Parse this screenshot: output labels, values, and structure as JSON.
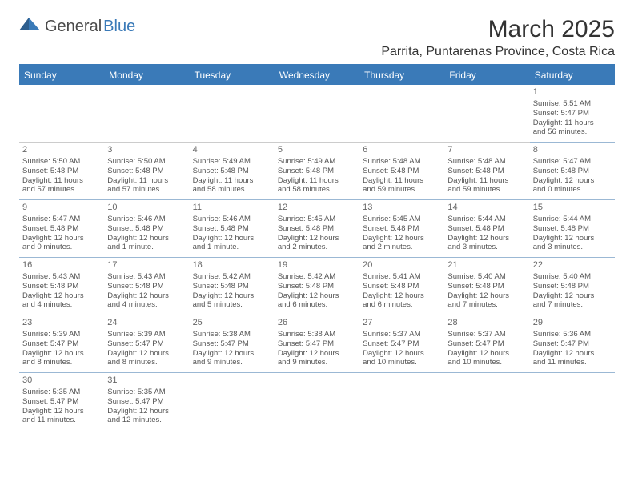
{
  "logo": {
    "text1": "General",
    "text2": "Blue"
  },
  "title": "March 2025",
  "location": "Parrita, Puntarenas Province, Costa Rica",
  "weekdays": [
    "Sunday",
    "Monday",
    "Tuesday",
    "Wednesday",
    "Thursday",
    "Friday",
    "Saturday"
  ],
  "colors": {
    "header_bg": "#3a7ab8",
    "header_text": "#ffffff",
    "cell_border": "#9bb8d4",
    "text": "#555555",
    "daynum": "#666666"
  },
  "leading_blanks": 6,
  "days": [
    {
      "num": "1",
      "sunrise": "Sunrise: 5:51 AM",
      "sunset": "Sunset: 5:47 PM",
      "daylight1": "Daylight: 11 hours",
      "daylight2": "and 56 minutes."
    },
    {
      "num": "2",
      "sunrise": "Sunrise: 5:50 AM",
      "sunset": "Sunset: 5:48 PM",
      "daylight1": "Daylight: 11 hours",
      "daylight2": "and 57 minutes."
    },
    {
      "num": "3",
      "sunrise": "Sunrise: 5:50 AM",
      "sunset": "Sunset: 5:48 PM",
      "daylight1": "Daylight: 11 hours",
      "daylight2": "and 57 minutes."
    },
    {
      "num": "4",
      "sunrise": "Sunrise: 5:49 AM",
      "sunset": "Sunset: 5:48 PM",
      "daylight1": "Daylight: 11 hours",
      "daylight2": "and 58 minutes."
    },
    {
      "num": "5",
      "sunrise": "Sunrise: 5:49 AM",
      "sunset": "Sunset: 5:48 PM",
      "daylight1": "Daylight: 11 hours",
      "daylight2": "and 58 minutes."
    },
    {
      "num": "6",
      "sunrise": "Sunrise: 5:48 AM",
      "sunset": "Sunset: 5:48 PM",
      "daylight1": "Daylight: 11 hours",
      "daylight2": "and 59 minutes."
    },
    {
      "num": "7",
      "sunrise": "Sunrise: 5:48 AM",
      "sunset": "Sunset: 5:48 PM",
      "daylight1": "Daylight: 11 hours",
      "daylight2": "and 59 minutes."
    },
    {
      "num": "8",
      "sunrise": "Sunrise: 5:47 AM",
      "sunset": "Sunset: 5:48 PM",
      "daylight1": "Daylight: 12 hours",
      "daylight2": "and 0 minutes."
    },
    {
      "num": "9",
      "sunrise": "Sunrise: 5:47 AM",
      "sunset": "Sunset: 5:48 PM",
      "daylight1": "Daylight: 12 hours",
      "daylight2": "and 0 minutes."
    },
    {
      "num": "10",
      "sunrise": "Sunrise: 5:46 AM",
      "sunset": "Sunset: 5:48 PM",
      "daylight1": "Daylight: 12 hours",
      "daylight2": "and 1 minute."
    },
    {
      "num": "11",
      "sunrise": "Sunrise: 5:46 AM",
      "sunset": "Sunset: 5:48 PM",
      "daylight1": "Daylight: 12 hours",
      "daylight2": "and 1 minute."
    },
    {
      "num": "12",
      "sunrise": "Sunrise: 5:45 AM",
      "sunset": "Sunset: 5:48 PM",
      "daylight1": "Daylight: 12 hours",
      "daylight2": "and 2 minutes."
    },
    {
      "num": "13",
      "sunrise": "Sunrise: 5:45 AM",
      "sunset": "Sunset: 5:48 PM",
      "daylight1": "Daylight: 12 hours",
      "daylight2": "and 2 minutes."
    },
    {
      "num": "14",
      "sunrise": "Sunrise: 5:44 AM",
      "sunset": "Sunset: 5:48 PM",
      "daylight1": "Daylight: 12 hours",
      "daylight2": "and 3 minutes."
    },
    {
      "num": "15",
      "sunrise": "Sunrise: 5:44 AM",
      "sunset": "Sunset: 5:48 PM",
      "daylight1": "Daylight: 12 hours",
      "daylight2": "and 3 minutes."
    },
    {
      "num": "16",
      "sunrise": "Sunrise: 5:43 AM",
      "sunset": "Sunset: 5:48 PM",
      "daylight1": "Daylight: 12 hours",
      "daylight2": "and 4 minutes."
    },
    {
      "num": "17",
      "sunrise": "Sunrise: 5:43 AM",
      "sunset": "Sunset: 5:48 PM",
      "daylight1": "Daylight: 12 hours",
      "daylight2": "and 4 minutes."
    },
    {
      "num": "18",
      "sunrise": "Sunrise: 5:42 AM",
      "sunset": "Sunset: 5:48 PM",
      "daylight1": "Daylight: 12 hours",
      "daylight2": "and 5 minutes."
    },
    {
      "num": "19",
      "sunrise": "Sunrise: 5:42 AM",
      "sunset": "Sunset: 5:48 PM",
      "daylight1": "Daylight: 12 hours",
      "daylight2": "and 6 minutes."
    },
    {
      "num": "20",
      "sunrise": "Sunrise: 5:41 AM",
      "sunset": "Sunset: 5:48 PM",
      "daylight1": "Daylight: 12 hours",
      "daylight2": "and 6 minutes."
    },
    {
      "num": "21",
      "sunrise": "Sunrise: 5:40 AM",
      "sunset": "Sunset: 5:48 PM",
      "daylight1": "Daylight: 12 hours",
      "daylight2": "and 7 minutes."
    },
    {
      "num": "22",
      "sunrise": "Sunrise: 5:40 AM",
      "sunset": "Sunset: 5:48 PM",
      "daylight1": "Daylight: 12 hours",
      "daylight2": "and 7 minutes."
    },
    {
      "num": "23",
      "sunrise": "Sunrise: 5:39 AM",
      "sunset": "Sunset: 5:47 PM",
      "daylight1": "Daylight: 12 hours",
      "daylight2": "and 8 minutes."
    },
    {
      "num": "24",
      "sunrise": "Sunrise: 5:39 AM",
      "sunset": "Sunset: 5:47 PM",
      "daylight1": "Daylight: 12 hours",
      "daylight2": "and 8 minutes."
    },
    {
      "num": "25",
      "sunrise": "Sunrise: 5:38 AM",
      "sunset": "Sunset: 5:47 PM",
      "daylight1": "Daylight: 12 hours",
      "daylight2": "and 9 minutes."
    },
    {
      "num": "26",
      "sunrise": "Sunrise: 5:38 AM",
      "sunset": "Sunset: 5:47 PM",
      "daylight1": "Daylight: 12 hours",
      "daylight2": "and 9 minutes."
    },
    {
      "num": "27",
      "sunrise": "Sunrise: 5:37 AM",
      "sunset": "Sunset: 5:47 PM",
      "daylight1": "Daylight: 12 hours",
      "daylight2": "and 10 minutes."
    },
    {
      "num": "28",
      "sunrise": "Sunrise: 5:37 AM",
      "sunset": "Sunset: 5:47 PM",
      "daylight1": "Daylight: 12 hours",
      "daylight2": "and 10 minutes."
    },
    {
      "num": "29",
      "sunrise": "Sunrise: 5:36 AM",
      "sunset": "Sunset: 5:47 PM",
      "daylight1": "Daylight: 12 hours",
      "daylight2": "and 11 minutes."
    },
    {
      "num": "30",
      "sunrise": "Sunrise: 5:35 AM",
      "sunset": "Sunset: 5:47 PM",
      "daylight1": "Daylight: 12 hours",
      "daylight2": "and 11 minutes."
    },
    {
      "num": "31",
      "sunrise": "Sunrise: 5:35 AM",
      "sunset": "Sunset: 5:47 PM",
      "daylight1": "Daylight: 12 hours",
      "daylight2": "and 12 minutes."
    }
  ]
}
